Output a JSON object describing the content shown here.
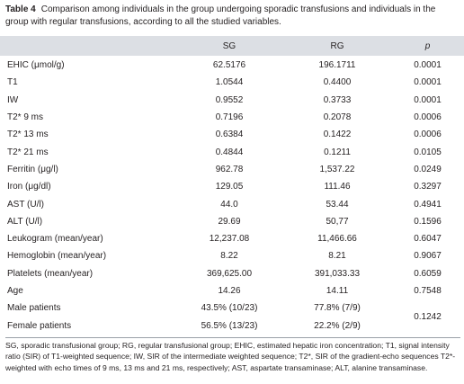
{
  "caption": {
    "label": "Table 4",
    "text": "Comparison among individuals in the group undergoing sporadic transfusions and individuals in the group with regular transfusions, according to all the studied variables."
  },
  "table": {
    "columns": [
      "SG",
      "RG",
      "p"
    ],
    "rows": [
      [
        "EHIC (μmol/g)",
        "62.5176",
        "196.1711",
        "0.0001"
      ],
      [
        "T1",
        "1.0544",
        "0.4400",
        "0.0001"
      ],
      [
        "IW",
        "0.9552",
        "0.3733",
        "0.0001"
      ],
      [
        "T2* 9 ms",
        "0.7196",
        "0.2078",
        "0.0006"
      ],
      [
        "T2* 13 ms",
        "0.6384",
        "0.1422",
        "0.0006"
      ],
      [
        "T2* 21 ms",
        "0.4844",
        "0.1211",
        "0.0105"
      ],
      [
        "Ferritin (μg/l)",
        "962.78",
        "1,537.22",
        "0.0249"
      ],
      [
        "Iron (μg/dl)",
        "129.05",
        "111.46",
        "0.3297"
      ],
      [
        "AST (U/l)",
        "44.0",
        "53.44",
        "0.4941"
      ],
      [
        "ALT (U/l)",
        "29.69",
        "50,77",
        "0.1596"
      ],
      [
        "Leukogram (mean/year)",
        "12,237.08",
        "11,466.66",
        "0.6047"
      ],
      [
        "Hemoglobin (mean/year)",
        "8.22",
        "8.21",
        "0.9067"
      ],
      [
        "Platelets (mean/year)",
        "369,625.00",
        "391,033.33",
        "0.6059"
      ],
      [
        "Age",
        "14.26",
        "14.11",
        "0.7548"
      ],
      [
        "Male patients",
        "43.5% (10/23)",
        "77.8% (7/9)",
        "0.1242"
      ],
      [
        "Female patients",
        "56.5% (13/23)",
        "22.2% (2/9)"
      ]
    ]
  },
  "footnote": "SG, sporadic transfusional group; RG, regular transfusional group; EHIC, estimated hepatic iron concentration; T1, signal intensity ratio (SIR) of T1-weighted sequence; IW, SIR of the intermediate weighted sequence; T2*, SIR of the gradient-echo sequences T2*-weighted with echo times of 9 ms, 13 ms and 21 ms, respectively; AST, aspartate transaminase; ALT, alanine transaminase."
}
